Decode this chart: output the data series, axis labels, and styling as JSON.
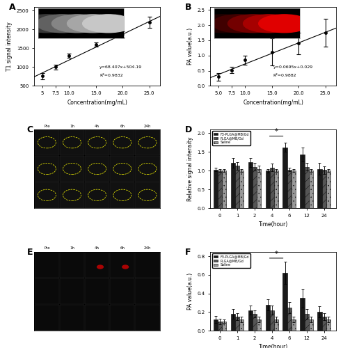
{
  "panel_A": {
    "x": [
      5.0,
      7.5,
      10.0,
      15.0,
      20.0,
      25.0
    ],
    "y": [
      760,
      1000,
      1300,
      1600,
      1870,
      2200
    ],
    "yerr": [
      80,
      70,
      60,
      60,
      80,
      150
    ],
    "xlabel": "Concentration(mg/mL)",
    "ylabel": "T1 signal intensity",
    "equation": "y=68.407x+504.19",
    "r2": "R²=0.9832",
    "slope": 68.407,
    "intercept": 504.19,
    "xlim": [
      3.5,
      27
    ],
    "ylim": [
      500,
      2600
    ],
    "xticks": [
      5,
      7.5,
      10.0,
      15.0,
      20.0,
      25.0
    ],
    "yticks": [
      500,
      1000,
      1500,
      2000,
      2500
    ],
    "label": "A"
  },
  "panel_B": {
    "x": [
      5.0,
      7.5,
      10.0,
      15.0,
      20.0,
      25.0
    ],
    "y": [
      0.3,
      0.52,
      0.85,
      1.12,
      1.4,
      1.75
    ],
    "yerr": [
      0.12,
      0.1,
      0.15,
      0.45,
      0.35,
      0.45
    ],
    "xlabel": "Concentration(mg/mL)",
    "ylabel": "PA value(a.u.)",
    "equation": "y=0.0695x+0.029",
    "r2": "R²=0.9882",
    "slope": 0.0695,
    "intercept": 0.029,
    "xlim": [
      3.5,
      27
    ],
    "ylim": [
      0.0,
      2.6
    ],
    "xticks": [
      5.0,
      7.5,
      10.0,
      15.0,
      20.0,
      25.0
    ],
    "yticks": [
      0.0,
      0.5,
      1.0,
      1.5,
      2.0,
      2.5
    ],
    "label": "B"
  },
  "panel_D": {
    "time_points": [
      0,
      1,
      2,
      4,
      6,
      12,
      24
    ],
    "f3_y": [
      1.03,
      1.2,
      1.22,
      1.0,
      1.62,
      1.43,
      1.05
    ],
    "f3_err": [
      0.05,
      0.13,
      0.12,
      0.05,
      0.12,
      0.18,
      0.15
    ],
    "plga_y": [
      1.0,
      1.13,
      1.1,
      1.08,
      1.03,
      1.1,
      1.02
    ],
    "plga_err": [
      0.04,
      0.1,
      0.1,
      0.1,
      0.05,
      0.1,
      0.1
    ],
    "saline_y": [
      1.0,
      1.0,
      1.05,
      1.0,
      1.0,
      1.0,
      1.0
    ],
    "saline_err": [
      0.04,
      0.04,
      0.08,
      0.04,
      0.04,
      0.04,
      0.04
    ],
    "xlabel": "Time(hour)",
    "ylabel": "Relative signal intensity",
    "ylim": [
      0.0,
      2.1
    ],
    "yticks": [
      0.0,
      0.5,
      1.0,
      1.5,
      2.0
    ],
    "label": "D",
    "legend": [
      "F3-PLGA@MB/Gd",
      "PLGA@MB/Gd",
      "Saline"
    ],
    "star_x1": 4,
    "star_x2": 6,
    "star_y": 1.92
  },
  "panel_F": {
    "time_points": [
      0,
      1,
      2,
      4,
      6,
      12,
      24
    ],
    "f3_y": [
      0.12,
      0.18,
      0.22,
      0.28,
      0.62,
      0.35,
      0.2
    ],
    "f3_err": [
      0.04,
      0.05,
      0.05,
      0.06,
      0.12,
      0.1,
      0.06
    ],
    "plga_y": [
      0.1,
      0.15,
      0.18,
      0.22,
      0.25,
      0.18,
      0.15
    ],
    "plga_err": [
      0.03,
      0.04,
      0.04,
      0.05,
      0.06,
      0.05,
      0.04
    ],
    "saline_y": [
      0.1,
      0.12,
      0.12,
      0.12,
      0.12,
      0.12,
      0.12
    ],
    "saline_err": [
      0.02,
      0.03,
      0.03,
      0.03,
      0.03,
      0.03,
      0.03
    ],
    "xlabel": "Time(hour)",
    "ylabel": "PA value(a.u.)",
    "ylim": [
      0.0,
      0.85
    ],
    "yticks": [
      0.0,
      0.2,
      0.4,
      0.6,
      0.8
    ],
    "label": "F",
    "legend": [
      "F3-PLGA@MB/Gd",
      "PLGA@MB/Gd",
      "Saline"
    ],
    "star_x1": 4,
    "star_x2": 6,
    "star_y": 0.78
  },
  "colors": {
    "f3_bar": "#1a1a1a",
    "plga_bar": "#555555",
    "saline_bar": "#999999"
  },
  "panel_C_col_labels": [
    "Pre",
    "1h",
    "4h",
    "6h",
    "24h"
  ],
  "panel_E_col_labels": [
    "Pre",
    "1h",
    "4h",
    "6h",
    "24h"
  ]
}
